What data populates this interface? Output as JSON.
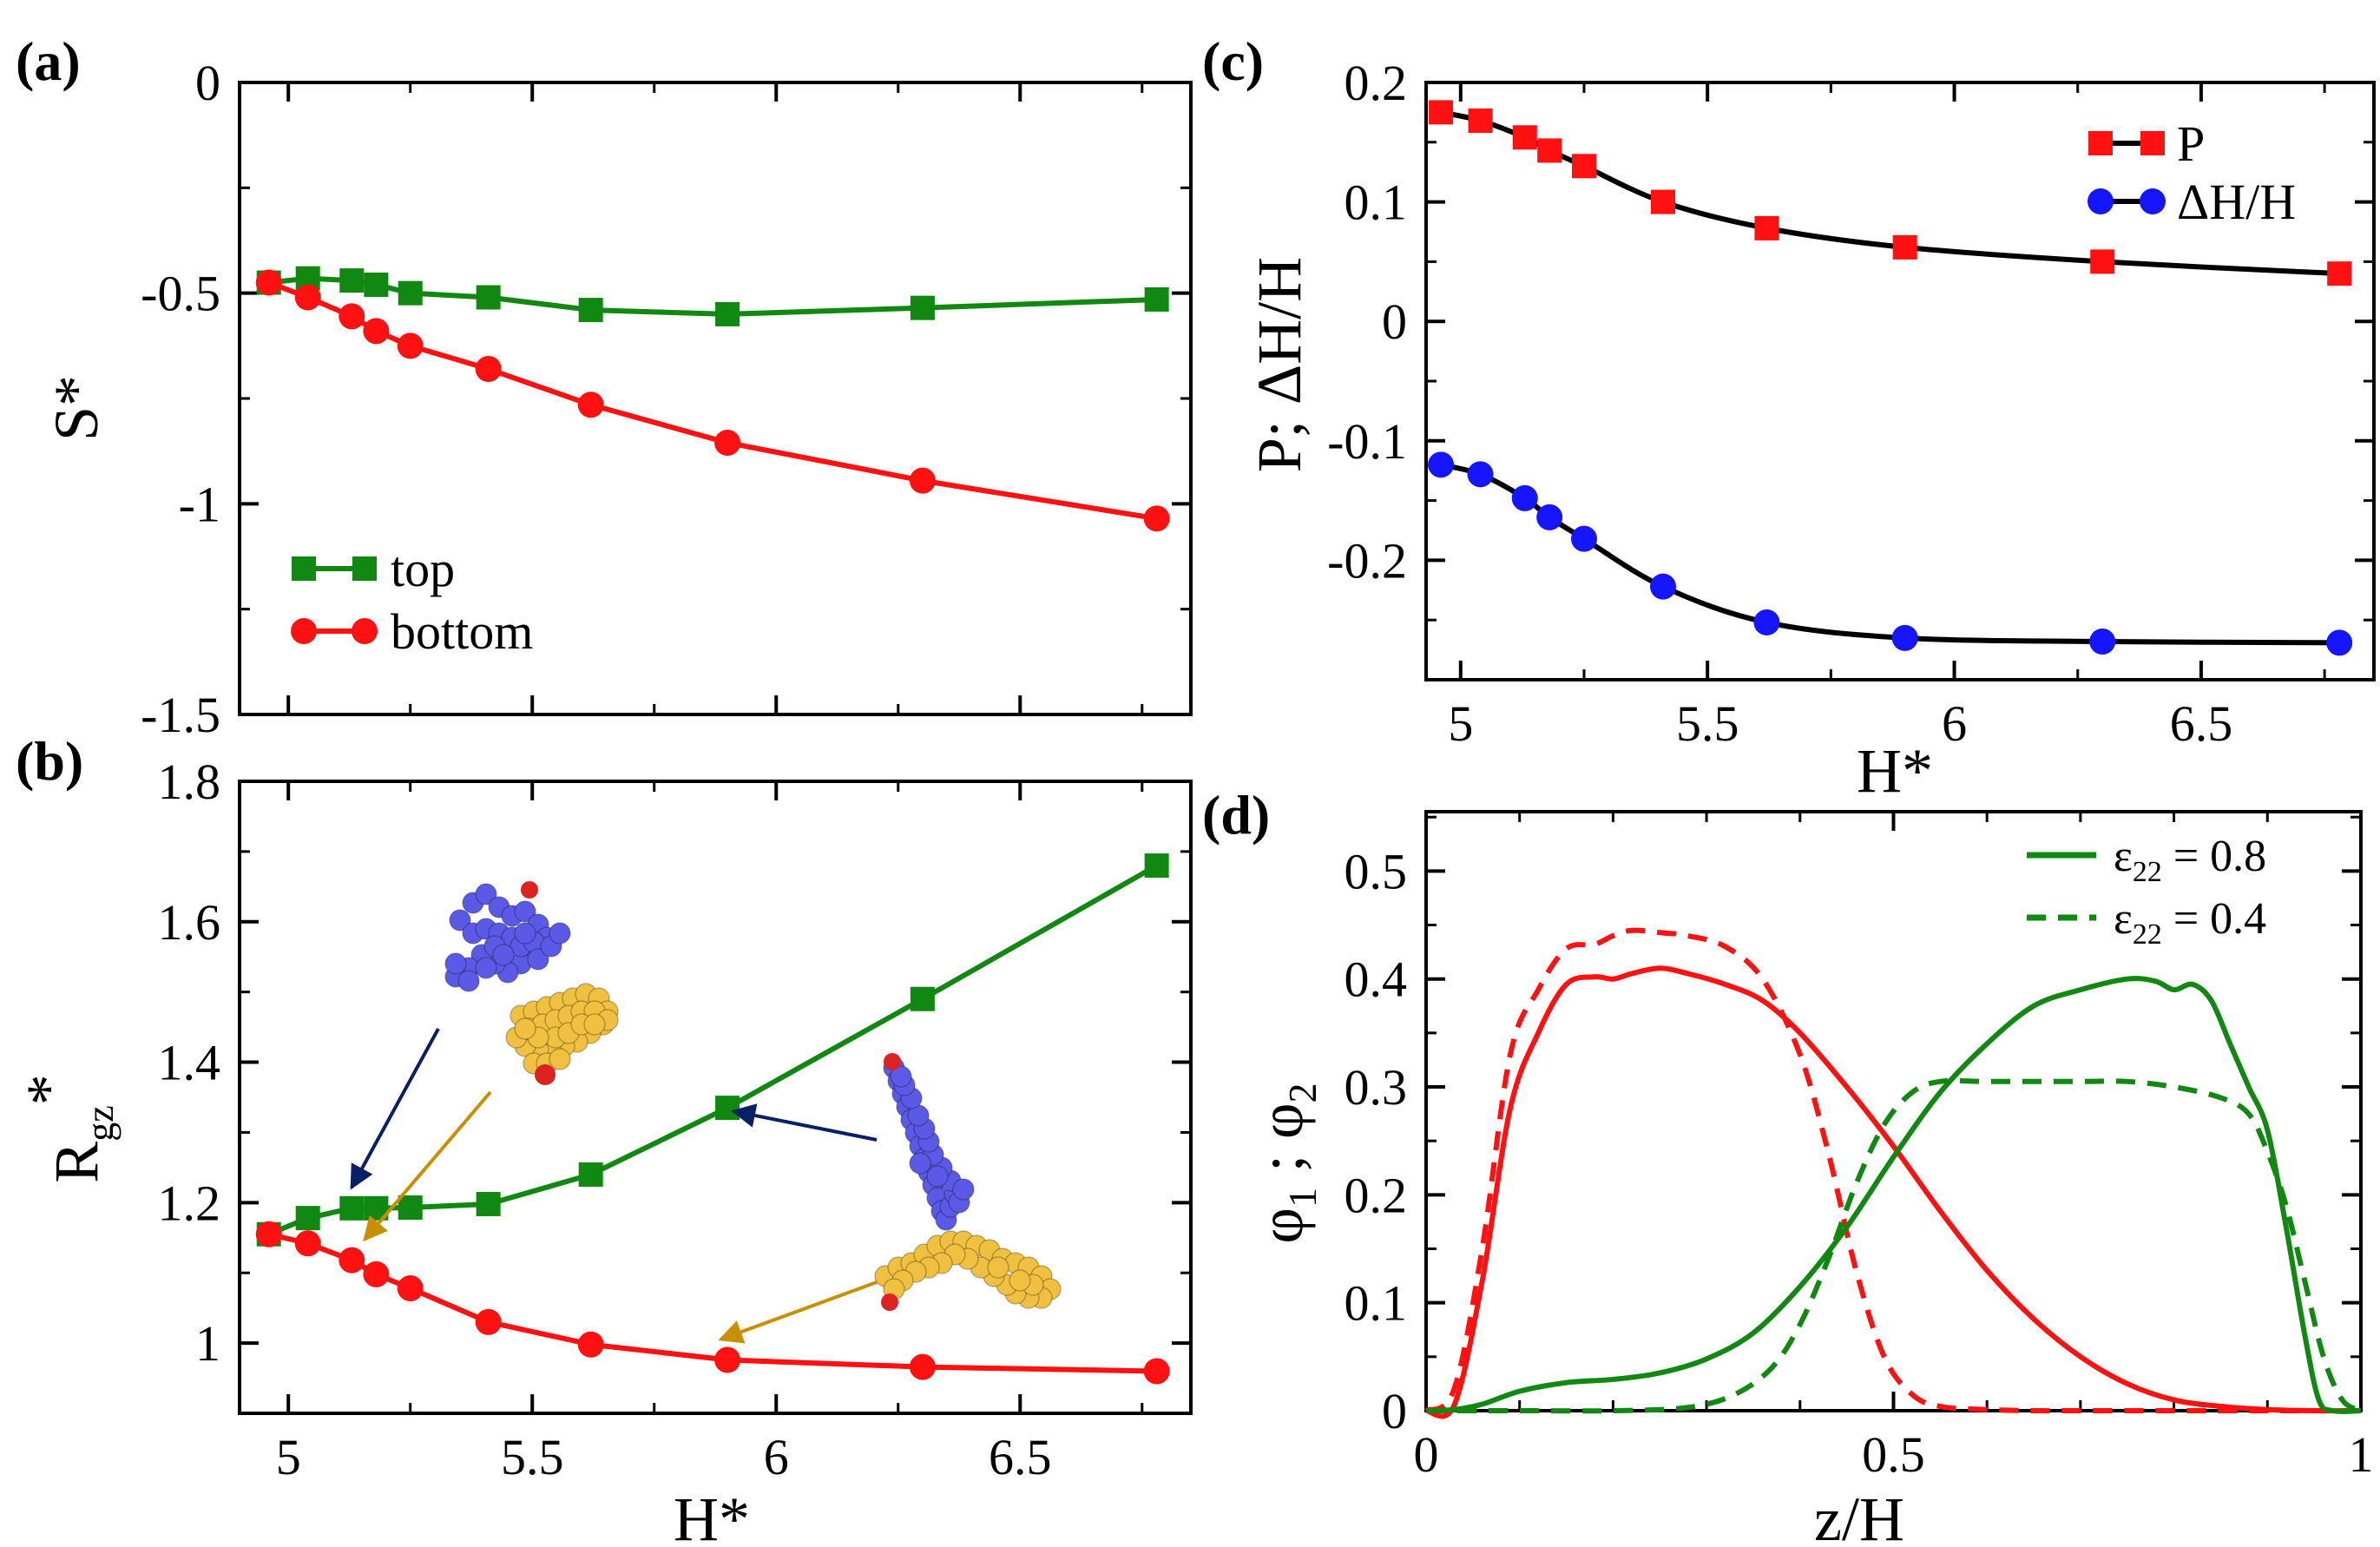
{
  "colors": {
    "green": "#118811",
    "red": "#ff1111",
    "blue": "#1515ff",
    "black": "#000000",
    "navy_arrow": "#0b1f66",
    "gold_arrow": "#c89000",
    "mol_blue": "#5a5ae6",
    "mol_yellow": "#f0c040",
    "mol_red": "#dd2222"
  },
  "panels": {
    "a": {
      "label": "(a)"
    },
    "b": {
      "label": "(b)"
    },
    "c": {
      "label": "(c)"
    },
    "d": {
      "label": "(d)"
    }
  },
  "chart_data": [
    {
      "id": "a",
      "type": "line",
      "title": "",
      "xlabel": "",
      "ylabel": "S*",
      "xlim": [
        4.9,
        6.85
      ],
      "ylim": [
        -1.5,
        0
      ],
      "xticks": [
        5,
        5.5,
        6,
        6.5
      ],
      "xtick_labels": [],
      "yticks": [
        0,
        -0.5,
        -1,
        -1.5
      ],
      "ytick_labels": [
        "0",
        "-0.5",
        "-1",
        "-1.5"
      ],
      "legend_position": "bottom-left",
      "series": [
        {
          "name": "top",
          "color": "#118811",
          "marker": "square",
          "x": [
            4.96,
            5.04,
            5.13,
            5.18,
            5.25,
            5.41,
            5.62,
            5.9,
            6.3,
            6.78
          ],
          "y": [
            -0.475,
            -0.465,
            -0.47,
            -0.48,
            -0.5,
            -0.51,
            -0.54,
            -0.55,
            -0.535,
            -0.515
          ]
        },
        {
          "name": "bottom",
          "color": "#ff1111",
          "marker": "circle",
          "x": [
            4.96,
            5.04,
            5.13,
            5.18,
            5.25,
            5.41,
            5.62,
            5.9,
            6.3,
            6.78
          ],
          "y": [
            -0.475,
            -0.51,
            -0.555,
            -0.59,
            -0.625,
            -0.68,
            -0.765,
            -0.855,
            -0.945,
            -1.035
          ]
        }
      ]
    },
    {
      "id": "b",
      "type": "line",
      "title": "",
      "xlabel": "H*",
      "ylabel_main": "R",
      "ylabel_sub": "gz",
      "ylabel_sup": "*",
      "xlim": [
        4.9,
        6.85
      ],
      "ylim": [
        0.9,
        1.8
      ],
      "xticks": [
        5,
        5.5,
        6,
        6.5
      ],
      "xtick_labels": [
        "5",
        "5.5",
        "6",
        "6.5"
      ],
      "yticks": [
        1,
        1.2,
        1.4,
        1.6,
        1.8
      ],
      "ytick_labels": [
        "1",
        "1.2",
        "1.4",
        "1.6",
        "1.8"
      ],
      "series": [
        {
          "name": "",
          "color": "#118811",
          "marker": "square",
          "x": [
            4.96,
            5.04,
            5.13,
            5.18,
            5.25,
            5.41,
            5.62,
            5.9,
            6.3,
            6.78
          ],
          "y": [
            1.155,
            1.178,
            1.192,
            1.192,
            1.193,
            1.198,
            1.24,
            1.335,
            1.49,
            1.68
          ]
        },
        {
          "name": "",
          "color": "#ff1111",
          "marker": "circle",
          "x": [
            4.96,
            5.04,
            5.13,
            5.18,
            5.25,
            5.41,
            5.62,
            5.9,
            6.3,
            6.78
          ],
          "y": [
            1.155,
            1.142,
            1.118,
            1.098,
            1.078,
            1.03,
            0.998,
            0.976,
            0.966,
            0.96
          ]
        }
      ]
    },
    {
      "id": "c",
      "type": "line",
      "title": "",
      "xlabel": "H*",
      "ylabel": "P; ΔH/H",
      "xlim": [
        4.93,
        6.85
      ],
      "ylim": [
        -0.3,
        0.2
      ],
      "xticks": [
        5,
        5.5,
        6,
        6.5
      ],
      "xtick_labels": [
        "5",
        "5.5",
        "6",
        "6.5"
      ],
      "yticks": [
        0.2,
        0.1,
        0,
        -0.1,
        -0.2
      ],
      "ytick_labels": [
        "0.2",
        "0.1",
        "0",
        "-0.1",
        "-0.2"
      ],
      "legend_position": "top-right",
      "series": [
        {
          "name": "P",
          "color": "#ff1111",
          "marker": "square",
          "line_color": "#000000",
          "x": [
            4.96,
            5.04,
            5.13,
            5.18,
            5.25,
            5.41,
            5.62,
            5.9,
            6.3,
            6.78
          ],
          "y": [
            0.175,
            0.168,
            0.154,
            0.143,
            0.13,
            0.1,
            0.078,
            0.062,
            0.05,
            0.04
          ]
        },
        {
          "name": "ΔH/H",
          "color": "#1515ff",
          "marker": "circle",
          "line_color": "#000000",
          "x": [
            4.96,
            5.04,
            5.13,
            5.18,
            5.25,
            5.41,
            5.62,
            5.9,
            6.3,
            6.78
          ],
          "y": [
            -0.12,
            -0.128,
            -0.148,
            -0.164,
            -0.182,
            -0.222,
            -0.252,
            -0.265,
            -0.268,
            -0.269
          ]
        }
      ]
    },
    {
      "id": "d",
      "type": "line",
      "title": "",
      "xlabel": "z/H",
      "ylabel": "φ1 ; φ2",
      "xlim": [
        0,
        1
      ],
      "ylim": [
        0,
        0.555
      ],
      "xticks": [
        0,
        0.5,
        1
      ],
      "xtick_labels": [
        "0",
        "0.5",
        "1"
      ],
      "yticks": [
        0,
        0.1,
        0.2,
        0.3,
        0.4,
        0.5
      ],
      "ytick_labels": [
        "0",
        "0.1",
        "0.2",
        "0.3",
        "0.4",
        "0.5"
      ],
      "legend_position": "top-right",
      "legend": [
        {
          "label": "ε22 = 0.8",
          "label_main": "ε",
          "label_sub": "22",
          "label_rest": " = 0.8",
          "style": "solid",
          "color": "#118811"
        },
        {
          "label": "ε22 = 0.4",
          "label_main": "ε",
          "label_sub": "22",
          "label_rest": " = 0.4",
          "style": "dashed",
          "color": "#118811"
        }
      ],
      "series": [
        {
          "name": "",
          "color": "#ff1111",
          "style": "solid",
          "x": [
            0,
            0.03,
            0.06,
            0.09,
            0.12,
            0.15,
            0.18,
            0.2,
            0.22,
            0.25,
            0.28,
            0.32,
            0.36,
            0.4,
            0.45,
            0.5,
            0.55,
            0.6,
            0.65,
            0.7,
            0.75,
            0.8,
            0.85,
            0.9,
            0.95,
            1.0
          ],
          "y": [
            0,
            0.005,
            0.12,
            0.28,
            0.35,
            0.395,
            0.402,
            0.4,
            0.405,
            0.41,
            0.405,
            0.395,
            0.38,
            0.35,
            0.3,
            0.245,
            0.185,
            0.13,
            0.085,
            0.05,
            0.025,
            0.01,
            0.004,
            0.001,
            0,
            0
          ]
        },
        {
          "name": "",
          "color": "#ff1111",
          "style": "dashed",
          "x": [
            0,
            0.03,
            0.06,
            0.09,
            0.12,
            0.15,
            0.18,
            0.2,
            0.22,
            0.25,
            0.28,
            0.32,
            0.36,
            0.4,
            0.43,
            0.46,
            0.49,
            0.52,
            0.55,
            0.6,
            0.65,
            0.7,
            0.8,
            0.9,
            1.0
          ],
          "y": [
            0,
            0.02,
            0.15,
            0.33,
            0.39,
            0.428,
            0.432,
            0.44,
            0.445,
            0.443,
            0.44,
            0.43,
            0.4,
            0.33,
            0.24,
            0.13,
            0.05,
            0.015,
            0.004,
            0.001,
            0,
            0,
            0,
            0,
            0
          ]
        },
        {
          "name": "",
          "color": "#118811",
          "style": "solid",
          "x": [
            0,
            0.03,
            0.06,
            0.1,
            0.15,
            0.2,
            0.25,
            0.3,
            0.35,
            0.4,
            0.45,
            0.5,
            0.55,
            0.6,
            0.65,
            0.7,
            0.75,
            0.78,
            0.8,
            0.82,
            0.84,
            0.86,
            0.88,
            0.9,
            0.92,
            0.94,
            0.955,
            0.97,
            1.0
          ],
          "y": [
            0,
            0.001,
            0.006,
            0.018,
            0.026,
            0.029,
            0.035,
            0.048,
            0.072,
            0.115,
            0.17,
            0.235,
            0.295,
            0.34,
            0.375,
            0.39,
            0.4,
            0.398,
            0.39,
            0.395,
            0.38,
            0.34,
            0.3,
            0.26,
            0.17,
            0.07,
            0.01,
            0,
            0
          ]
        },
        {
          "name": "",
          "color": "#118811",
          "style": "dashed",
          "x": [
            0,
            0.1,
            0.2,
            0.28,
            0.33,
            0.37,
            0.4,
            0.43,
            0.46,
            0.49,
            0.52,
            0.55,
            0.6,
            0.65,
            0.7,
            0.75,
            0.8,
            0.85,
            0.88,
            0.9,
            0.92,
            0.94,
            0.96,
            0.98,
            1.0
          ],
          "y": [
            0,
            0,
            0,
            0.003,
            0.015,
            0.04,
            0.08,
            0.14,
            0.21,
            0.265,
            0.295,
            0.305,
            0.305,
            0.305,
            0.305,
            0.305,
            0.3,
            0.29,
            0.275,
            0.24,
            0.19,
            0.12,
            0.05,
            0.01,
            0
          ]
        }
      ]
    }
  ]
}
